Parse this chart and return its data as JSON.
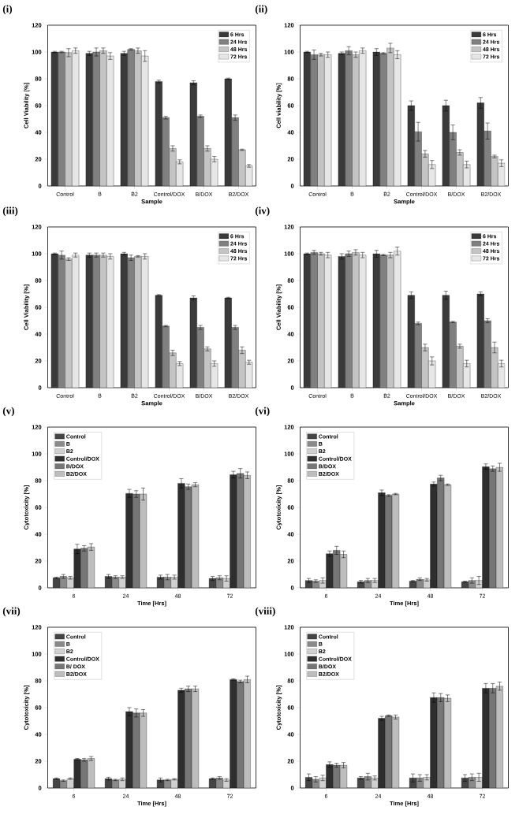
{
  "chart_data": [
    {
      "type": "bar",
      "title": "(i)",
      "xlabel": "Sample",
      "ylabel": "Cell Viability [%]",
      "categories": [
        "Control",
        "B",
        "B2",
        "Control/DOX",
        "B/DOX",
        "B2/DOX"
      ],
      "ylim": [
        0,
        120
      ],
      "yticks": [
        0,
        20,
        40,
        60,
        80,
        100,
        120
      ],
      "legend": "top right",
      "series": [
        {
          "name": "6 Hrs",
          "color": "#3a3a3a",
          "values": [
            100,
            99,
            99,
            78,
            77,
            80
          ],
          "errors": [
            0.5,
            1.5,
            1.5,
            1,
            1.5,
            0.5
          ]
        },
        {
          "name": "24 Hrs",
          "color": "#808080",
          "values": [
            100,
            100,
            102,
            51,
            52,
            51
          ],
          "errors": [
            0.5,
            3,
            0.5,
            1,
            1,
            2
          ]
        },
        {
          "name": "48 Hrs",
          "color": "#c4c4c4",
          "values": [
            99.5,
            101,
            101,
            28,
            28,
            27
          ],
          "errors": [
            3,
            2,
            2,
            2,
            2,
            0.5
          ]
        },
        {
          "name": "72 Hrs",
          "color": "#e6e6e6",
          "values": [
            101,
            97,
            97,
            18,
            20,
            15
          ],
          "errors": [
            2,
            2.5,
            4,
            1.5,
            2,
            1
          ]
        }
      ]
    },
    {
      "type": "bar",
      "title": "(ii)",
      "xlabel": "Sample",
      "ylabel": "Cell viability [%]",
      "categories": [
        "Control",
        "B",
        "B2",
        "Control/DOX",
        "B/DOX",
        "B2/DOX"
      ],
      "ylim": [
        0,
        120
      ],
      "yticks": [
        0,
        20,
        40,
        60,
        80,
        100,
        120
      ],
      "legend": "top right",
      "series": [
        {
          "name": "6 Hrs",
          "color": "#3a3a3a",
          "values": [
            100,
            99,
            100,
            60,
            60,
            62
          ],
          "errors": [
            0.5,
            1,
            2.5,
            3.5,
            4,
            4
          ]
        },
        {
          "name": "24 Hrs",
          "color": "#808080",
          "values": [
            98,
            101,
            99,
            40.5,
            40,
            41
          ],
          "errors": [
            3.5,
            3,
            0.5,
            7,
            5.5,
            6
          ]
        },
        {
          "name": "48 Hrs",
          "color": "#c4c4c4",
          "values": [
            98,
            98,
            103,
            24,
            25,
            22
          ],
          "errors": [
            1,
            2,
            3.5,
            2.5,
            2,
            1
          ]
        },
        {
          "name": "72 Hrs",
          "color": "#e6e6e6",
          "values": [
            98,
            101,
            98,
            16,
            16,
            17
          ],
          "errors": [
            2,
            2,
            3,
            3,
            2.5,
            2.5
          ]
        }
      ]
    },
    {
      "type": "bar",
      "title": "(iii)",
      "xlabel": "Sample",
      "ylabel": "Cell Viability [%]",
      "categories": [
        "Control",
        "B",
        "B2",
        "Control/DOX",
        "B/DOX",
        "B2/DOX"
      ],
      "ylim": [
        0,
        120
      ],
      "yticks": [
        0,
        20,
        40,
        60,
        80,
        100,
        120
      ],
      "legend": "top right",
      "series": [
        {
          "name": "6 Hrs",
          "color": "#3a3a3a",
          "values": [
            100,
            99,
            100,
            69,
            67,
            67
          ],
          "errors": [
            0.5,
            1.5,
            1,
            0.5,
            1.5,
            0.5
          ]
        },
        {
          "name": "24 Hrs",
          "color": "#808080",
          "values": [
            99,
            99,
            97,
            46,
            45,
            45
          ],
          "errors": [
            3,
            1.5,
            2,
            0.5,
            1.5,
            1.5
          ]
        },
        {
          "name": "48 Hrs",
          "color": "#c4c4c4",
          "values": [
            96,
            99,
            98,
            26,
            29,
            28
          ],
          "errors": [
            1,
            1.5,
            0.5,
            2,
            1.5,
            2.5
          ]
        },
        {
          "name": "72 Hrs",
          "color": "#e6e6e6",
          "values": [
            99,
            98,
            98,
            18,
            18,
            19
          ],
          "errors": [
            1.5,
            2,
            2,
            1.5,
            2,
            1.5
          ]
        }
      ]
    },
    {
      "type": "bar",
      "title": "(iv)",
      "xlabel": "Sample",
      "ylabel": "Cell Viability [%]",
      "categories": [
        "Control",
        "B",
        "B2",
        "Control/DOX",
        "B/DOX",
        "B2/DOX"
      ],
      "ylim": [
        0,
        120
      ],
      "yticks": [
        0,
        20,
        40,
        60,
        80,
        100,
        120
      ],
      "legend": "top right",
      "series": [
        {
          "name": "6 Hrs",
          "color": "#3a3a3a",
          "values": [
            100,
            98,
            100,
            69,
            69,
            70
          ],
          "errors": [
            0.5,
            2,
            2.5,
            2.5,
            3,
            1.5
          ]
        },
        {
          "name": "24 Hrs",
          "color": "#808080",
          "values": [
            101,
            100,
            99,
            48,
            49,
            50
          ],
          "errors": [
            1.5,
            2,
            0.5,
            1,
            0.5,
            1.5
          ]
        },
        {
          "name": "48 Hrs",
          "color": "#c4c4c4",
          "values": [
            100,
            101,
            99,
            30,
            31,
            30
          ],
          "errors": [
            1,
            2,
            2,
            2.5,
            1.5,
            4
          ]
        },
        {
          "name": "72 Hrs",
          "color": "#e6e6e6",
          "values": [
            99,
            99,
            102,
            20,
            18,
            18
          ],
          "errors": [
            2,
            2,
            3,
            3,
            2.5,
            2.5
          ]
        }
      ]
    },
    {
      "type": "bar",
      "title": "(v)",
      "xlabel": "Time [Hrs]",
      "ylabel": "Cytotoxicity [%]",
      "categories": [
        "6",
        "24",
        "48",
        "72"
      ],
      "ylim": [
        0,
        120
      ],
      "yticks": [
        0,
        20,
        40,
        60,
        80,
        100,
        120
      ],
      "legend": "top left",
      "series": [
        {
          "name": "Control",
          "color": "#444444",
          "values": [
            7.5,
            8.5,
            8,
            7
          ],
          "errors": [
            0.5,
            1.5,
            1.5,
            1.5
          ]
        },
        {
          "name": "B",
          "color": "#8a8a8a",
          "values": [
            8.5,
            8,
            8,
            7.5
          ],
          "errors": [
            1.5,
            1,
            2,
            1.5
          ]
        },
        {
          "name": "B2",
          "color": "#d0d0d0",
          "values": [
            7.5,
            8,
            8,
            7
          ],
          "errors": [
            1,
            1,
            1.5,
            2
          ]
        },
        {
          "name": "Control/DOX",
          "color": "#2e2e2e",
          "values": [
            29,
            70.5,
            78,
            84.5
          ],
          "errors": [
            3.5,
            3,
            3.5,
            2.5
          ]
        },
        {
          "name": "B/DOX",
          "color": "#767676",
          "values": [
            29.5,
            70,
            75.5,
            85.5
          ],
          "errors": [
            2,
            2.5,
            2,
            3.5
          ]
        },
        {
          "name": "B2/DOX",
          "color": "#bdbdbd",
          "values": [
            30.5,
            70,
            77,
            84
          ],
          "errors": [
            2.5,
            4.5,
            1.5,
            2.5
          ]
        }
      ]
    },
    {
      "type": "bar",
      "title": "(vi)",
      "xlabel": "Time [Hrs]",
      "ylabel": "Cytotoxicity [%]",
      "categories": [
        "6",
        "24",
        "48",
        "72"
      ],
      "ylim": [
        0,
        120
      ],
      "yticks": [
        0,
        20,
        40,
        60,
        80,
        100,
        120
      ],
      "legend": "top left",
      "series": [
        {
          "name": "Control",
          "color": "#444444",
          "values": [
            5.5,
            4.5,
            5,
            4.5
          ],
          "errors": [
            1.5,
            1,
            0.5,
            0.5
          ]
        },
        {
          "name": "B",
          "color": "#8a8a8a",
          "values": [
            5,
            5.5,
            6.5,
            5.5
          ],
          "errors": [
            1,
            1.5,
            1,
            2
          ]
        },
        {
          "name": "B2",
          "color": "#d0d0d0",
          "values": [
            5.5,
            5.5,
            6,
            5.5
          ],
          "errors": [
            2,
            1.5,
            1,
            3
          ]
        },
        {
          "name": "Control/DOX",
          "color": "#2e2e2e",
          "values": [
            25.5,
            71,
            77.5,
            90.5
          ],
          "errors": [
            2,
            2,
            1.5,
            2
          ]
        },
        {
          "name": "B/DOX",
          "color": "#767676",
          "values": [
            28,
            69,
            82,
            89
          ],
          "errors": [
            3,
            0.5,
            2,
            2
          ]
        },
        {
          "name": "B2/DOX",
          "color": "#bdbdbd",
          "values": [
            25,
            70,
            77,
            90
          ],
          "errors": [
            2.5,
            0.5,
            0.5,
            3
          ]
        }
      ]
    },
    {
      "type": "bar",
      "title": "(vii)",
      "xlabel": "Time [Hrs]",
      "ylabel": "Cytotoxicity [%]",
      "categories": [
        "6",
        "24",
        "48",
        "72"
      ],
      "ylim": [
        0,
        120
      ],
      "yticks": [
        0,
        20,
        40,
        60,
        80,
        100,
        120
      ],
      "legend": "top left",
      "series": [
        {
          "name": "Control",
          "color": "#444444",
          "values": [
            7,
            7,
            6,
            7
          ],
          "errors": [
            0.5,
            1,
            1.5,
            0.5
          ]
        },
        {
          "name": "B",
          "color": "#8a8a8a",
          "values": [
            5.5,
            6,
            6,
            7.5
          ],
          "errors": [
            0.5,
            0.5,
            0.5,
            1
          ]
        },
        {
          "name": "B2",
          "color": "#d0d0d0",
          "values": [
            7,
            6.5,
            6.5,
            6
          ],
          "errors": [
            0.5,
            1,
            0.5,
            1
          ]
        },
        {
          "name": "Control/DOX",
          "color": "#2e2e2e",
          "values": [
            21.5,
            57,
            73,
            81
          ],
          "errors": [
            0.5,
            3,
            1.5,
            0.5
          ]
        },
        {
          "name": "B/ DOX",
          "color": "#767676",
          "values": [
            21,
            56,
            74,
            79.5
          ],
          "errors": [
            1,
            3,
            2,
            1
          ]
        },
        {
          "name": "B2/DOX",
          "color": "#bdbdbd",
          "values": [
            22,
            56,
            74,
            81
          ],
          "errors": [
            1.5,
            2.5,
            2,
            2.5
          ]
        }
      ]
    },
    {
      "type": "bar",
      "title": "(viii)",
      "xlabel": "Time [Hrs]",
      "ylabel": "Cytotoxicity [%]",
      "categories": [
        "6",
        "24",
        "48",
        "72"
      ],
      "ylim": [
        0,
        120
      ],
      "yticks": [
        0,
        20,
        40,
        60,
        80,
        100,
        120
      ],
      "legend": "top left",
      "series": [
        {
          "name": "Control",
          "color": "#444444",
          "values": [
            8,
            7.5,
            7.5,
            7.5
          ],
          "errors": [
            2.5,
            1,
            3,
            2.5
          ]
        },
        {
          "name": "B",
          "color": "#8a8a8a",
          "values": [
            6.5,
            8.5,
            7.5,
            8
          ],
          "errors": [
            2,
            2.5,
            2.5,
            2.5
          ]
        },
        {
          "name": "B2",
          "color": "#d0d0d0",
          "values": [
            7.5,
            7.5,
            8,
            8
          ],
          "errors": [
            2,
            1.5,
            2,
            3
          ]
        },
        {
          "name": "Control/DOX",
          "color": "#2e2e2e",
          "values": [
            17.5,
            52,
            67.5,
            74.5
          ],
          "errors": [
            2,
            1.5,
            3.5,
            3.5
          ]
        },
        {
          "name": "B/DOX",
          "color": "#767676",
          "values": [
            17,
            54,
            67.5,
            74.5
          ],
          "errors": [
            1.5,
            0.5,
            3,
            3.5
          ]
        },
        {
          "name": "B2/DOX",
          "color": "#bdbdbd",
          "values": [
            17,
            53,
            67,
            76
          ],
          "errors": [
            2,
            1.5,
            2.5,
            3
          ]
        }
      ]
    }
  ]
}
